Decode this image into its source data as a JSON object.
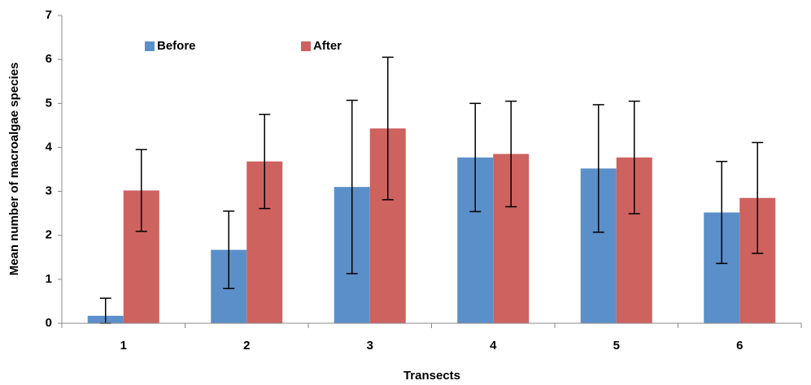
{
  "chart_data": {
    "type": "bar",
    "categories": [
      "1",
      "2",
      "3",
      "4",
      "5",
      "6"
    ],
    "series": [
      {
        "name": "Before",
        "color": "#5b8fc9",
        "values": [
          0.17,
          1.67,
          3.1,
          3.77,
          3.52,
          2.52
        ],
        "errors": [
          0.4,
          0.88,
          1.97,
          1.23,
          1.45,
          1.16
        ]
      },
      {
        "name": "After",
        "color": "#cd625f",
        "values": [
          3.02,
          3.68,
          4.43,
          3.85,
          3.77,
          2.85
        ],
        "errors": [
          0.93,
          1.07,
          1.62,
          1.2,
          1.28,
          1.26
        ]
      }
    ],
    "xlabel": "Transects",
    "ylabel": "Mean number of macroalgae species",
    "ylim": [
      0,
      7
    ],
    "yticks": [
      0,
      1,
      2,
      3,
      4,
      5,
      6,
      7
    ],
    "legend": "top-left"
  }
}
